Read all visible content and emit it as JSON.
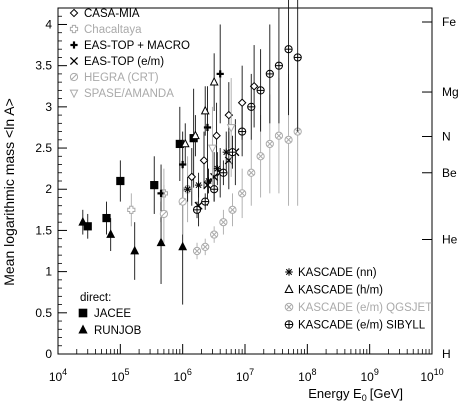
{
  "chart_data": {
    "type": "scatter",
    "xlabel": "Energy E",
    "xlabel_sub": "0",
    "xlabel_unit": "[GeV]",
    "ylabel": "Mean logarithmic mass <ln A>",
    "xscale": "log",
    "xlim": [
      10000,
      10000000000
    ],
    "ylim": [
      0,
      4.2
    ],
    "x_ticks": [
      {
        "base": "10",
        "exp": "4",
        "value": 10000
      },
      {
        "base": "10",
        "exp": "5",
        "value": 100000
      },
      {
        "base": "10",
        "exp": "6",
        "value": 1000000
      },
      {
        "base": "10",
        "exp": "7",
        "value": 10000000
      },
      {
        "base": "10",
        "exp": "8",
        "value": 100000000
      },
      {
        "base": "10",
        "exp": "9",
        "value": 1000000000
      },
      {
        "base": "10",
        "exp": "10",
        "value": 10000000000
      }
    ],
    "y_ticks": [
      "0",
      "0.5",
      "1",
      "1.5",
      "2",
      "2.5",
      "3",
      "3.5",
      "4"
    ],
    "element_labels": [
      {
        "label": "Fe",
        "y": 4.03
      },
      {
        "label": "Mg",
        "y": 3.18
      },
      {
        "label": "N",
        "y": 2.64
      },
      {
        "label": "Be",
        "y": 2.2
      },
      {
        "label": "He",
        "y": 1.39
      },
      {
        "label": "H",
        "y": 0
      }
    ],
    "legend_top": [
      {
        "marker": "diamond",
        "label": "CASA-MIA",
        "color": "#000000"
      },
      {
        "marker": "cross-open",
        "label": "Chacaltaya",
        "color": "#aaaaaa"
      },
      {
        "marker": "plus-bold",
        "label": "EAS-TOP + MACRO",
        "color": "#000000"
      },
      {
        "marker": "x",
        "label": "EAS-TOP (e/m)",
        "color": "#000000"
      },
      {
        "marker": "circle-slash",
        "label": "HEGRA (CRT)",
        "color": "#aaaaaa"
      },
      {
        "marker": "triangle-down",
        "label": "SPASE/AMANDA",
        "color": "#aaaaaa"
      }
    ],
    "legend_bottom": [
      {
        "marker": "asterisk",
        "label": "KASCADE (nn)",
        "color": "#000000"
      },
      {
        "marker": "triangle-up-open",
        "label": "KASCADE (h/m)",
        "color": "#000000"
      },
      {
        "marker": "circle-x",
        "label": "KASCADE (e/m) QGSJET",
        "color": "#aaaaaa"
      },
      {
        "marker": "circle-plus",
        "label": "KASCADE (e/m) SIBYLL",
        "color": "#000000"
      }
    ],
    "legend_direct_title": "direct:",
    "legend_direct": [
      {
        "marker": "square",
        "label": "JACEE",
        "color": "#000000"
      },
      {
        "marker": "triangle-up",
        "label": "RUNJOB",
        "color": "#000000"
      }
    ],
    "series": [
      {
        "name": "JACEE",
        "marker": "square",
        "color": "#000000",
        "points": [
          {
            "x": 30000,
            "y": 1.55,
            "err": 0.15
          },
          {
            "x": 60000,
            "y": 1.65,
            "err": 0.2
          },
          {
            "x": 100000,
            "y": 2.1,
            "err": 0.25
          },
          {
            "x": 350000,
            "y": 2.05,
            "err": 0.35
          },
          {
            "x": 900000,
            "y": 2.55,
            "err": 0.45
          },
          {
            "x": 1500000,
            "y": 2.62,
            "err": 0.6
          }
        ]
      },
      {
        "name": "RUNJOB",
        "marker": "triangle-up",
        "color": "#000000",
        "points": [
          {
            "x": 25000,
            "y": 1.6,
            "err": 0.15
          },
          {
            "x": 70000,
            "y": 1.45,
            "err": 0.2
          },
          {
            "x": 170000,
            "y": 1.25,
            "err": 0.35
          },
          {
            "x": 450000,
            "y": 1.35,
            "err": 0.5
          },
          {
            "x": 1000000,
            "y": 1.3,
            "err": 0.7
          }
        ]
      },
      {
        "name": "CASA-MIA",
        "marker": "diamond",
        "color": "#000000",
        "points": [
          {
            "x": 1400000,
            "y": 2.15,
            "err": 0.35
          },
          {
            "x": 2200000,
            "y": 2.35,
            "err": 0.35
          },
          {
            "x": 3500000,
            "y": 2.65,
            "err": 0.4
          },
          {
            "x": 5500000,
            "y": 2.9,
            "err": 0.4
          },
          {
            "x": 9000000,
            "y": 3.05,
            "err": 0.45
          },
          {
            "x": 14000000,
            "y": 3.25,
            "err": 0.5
          }
        ]
      },
      {
        "name": "Chacaltaya",
        "marker": "cross-open",
        "color": "#aaaaaa",
        "points": [
          {
            "x": 150000,
            "y": 1.75,
            "err": 0.2
          },
          {
            "x": 500000,
            "y": 1.95,
            "err": 0.3
          },
          {
            "x": 1200000,
            "y": 2.0,
            "err": 0.4
          }
        ]
      },
      {
        "name": "EAS-TOP + MACRO",
        "marker": "plus-bold",
        "color": "#000000",
        "points": [
          {
            "x": 450000,
            "y": 1.95,
            "err": 0.35
          },
          {
            "x": 1000000,
            "y": 2.3,
            "err": 0.4
          },
          {
            "x": 2500000,
            "y": 2.75,
            "err": 0.5
          },
          {
            "x": 4000000,
            "y": 3.4,
            "err": 0.6
          }
        ]
      },
      {
        "name": "EAS-TOP (e/m)",
        "marker": "x",
        "color": "#000000",
        "points": [
          {
            "x": 1800000,
            "y": 1.8,
            "err": 0.25
          },
          {
            "x": 2500000,
            "y": 2.05,
            "err": 0.25
          },
          {
            "x": 3200000,
            "y": 2.15,
            "err": 0.3
          },
          {
            "x": 4000000,
            "y": 2.2,
            "err": 0.3
          },
          {
            "x": 5500000,
            "y": 2.35,
            "err": 0.35
          },
          {
            "x": 7000000,
            "y": 2.45,
            "err": 0.4
          }
        ]
      },
      {
        "name": "HEGRA (CRT)",
        "marker": "circle-slash",
        "color": "#aaaaaa",
        "points": [
          {
            "x": 500000,
            "y": 1.7,
            "err": 0.35
          },
          {
            "x": 1000000,
            "y": 1.85,
            "err": 0.4
          }
        ]
      },
      {
        "name": "SPASE/AMANDA",
        "marker": "triangle-down",
        "color": "#aaaaaa",
        "points": [
          {
            "x": 3000000,
            "y": 2.5,
            "err": 0.5
          },
          {
            "x": 6000000,
            "y": 2.75,
            "err": 0.6
          }
        ]
      },
      {
        "name": "KASCADE (nn)",
        "marker": "asterisk",
        "color": "#000000",
        "points": [
          {
            "x": 1200000,
            "y": 2.0,
            "err": 0.15
          },
          {
            "x": 1800000,
            "y": 2.05,
            "err": 0.15
          },
          {
            "x": 2600000,
            "y": 2.1,
            "err": 0.15
          },
          {
            "x": 3600000,
            "y": 2.25,
            "err": 0.2
          },
          {
            "x": 5000000,
            "y": 2.45,
            "err": 0.25
          }
        ]
      },
      {
        "name": "KASCADE (h/m)",
        "marker": "triangle-up-open",
        "color": "#000000",
        "points": [
          {
            "x": 1100000,
            "y": 2.55,
            "err": 0.25
          },
          {
            "x": 1600000,
            "y": 2.65,
            "err": 0.25
          },
          {
            "x": 2300000,
            "y": 2.95,
            "err": 0.3
          },
          {
            "x": 3200000,
            "y": 3.3,
            "err": 0.35
          }
        ]
      },
      {
        "name": "KASCADE (e/m) QGSJET",
        "marker": "circle-x",
        "color": "#aaaaaa",
        "points": [
          {
            "x": 1700000,
            "y": 1.25,
            "err": 0.1
          },
          {
            "x": 2300000,
            "y": 1.3,
            "err": 0.1
          },
          {
            "x": 3200000,
            "y": 1.45,
            "err": 0.1
          },
          {
            "x": 4500000,
            "y": 1.6,
            "err": 0.15
          },
          {
            "x": 6300000,
            "y": 1.75,
            "err": 0.2
          },
          {
            "x": 9000000,
            "y": 1.95,
            "err": 0.3
          },
          {
            "x": 12600000,
            "y": 2.2,
            "err": 0.4
          },
          {
            "x": 17800000,
            "y": 2.4,
            "err": 0.5
          },
          {
            "x": 25000000,
            "y": 2.55,
            "err": 0.6
          },
          {
            "x": 35000000,
            "y": 2.65,
            "err": 0.7
          },
          {
            "x": 50000000,
            "y": 2.6,
            "err": 0.8
          },
          {
            "x": 70000000,
            "y": 2.7,
            "err": 0.9
          }
        ]
      },
      {
        "name": "KASCADE (e/m) SIBYLL",
        "marker": "circle-plus",
        "color": "#000000",
        "points": [
          {
            "x": 1700000,
            "y": 1.75,
            "err": 0.1
          },
          {
            "x": 2300000,
            "y": 1.85,
            "err": 0.1
          },
          {
            "x": 3200000,
            "y": 2.0,
            "err": 0.15
          },
          {
            "x": 4500000,
            "y": 2.2,
            "err": 0.15
          },
          {
            "x": 6300000,
            "y": 2.45,
            "err": 0.2
          },
          {
            "x": 9000000,
            "y": 2.7,
            "err": 0.3
          },
          {
            "x": 12600000,
            "y": 3.0,
            "err": 0.4
          },
          {
            "x": 17800000,
            "y": 3.2,
            "err": 0.5
          },
          {
            "x": 25000000,
            "y": 3.4,
            "err": 0.6
          },
          {
            "x": 35000000,
            "y": 3.5,
            "err": 0.7
          },
          {
            "x": 50000000,
            "y": 3.7,
            "err": 0.8
          },
          {
            "x": 70000000,
            "y": 3.6,
            "err": 0.9
          }
        ]
      }
    ]
  }
}
